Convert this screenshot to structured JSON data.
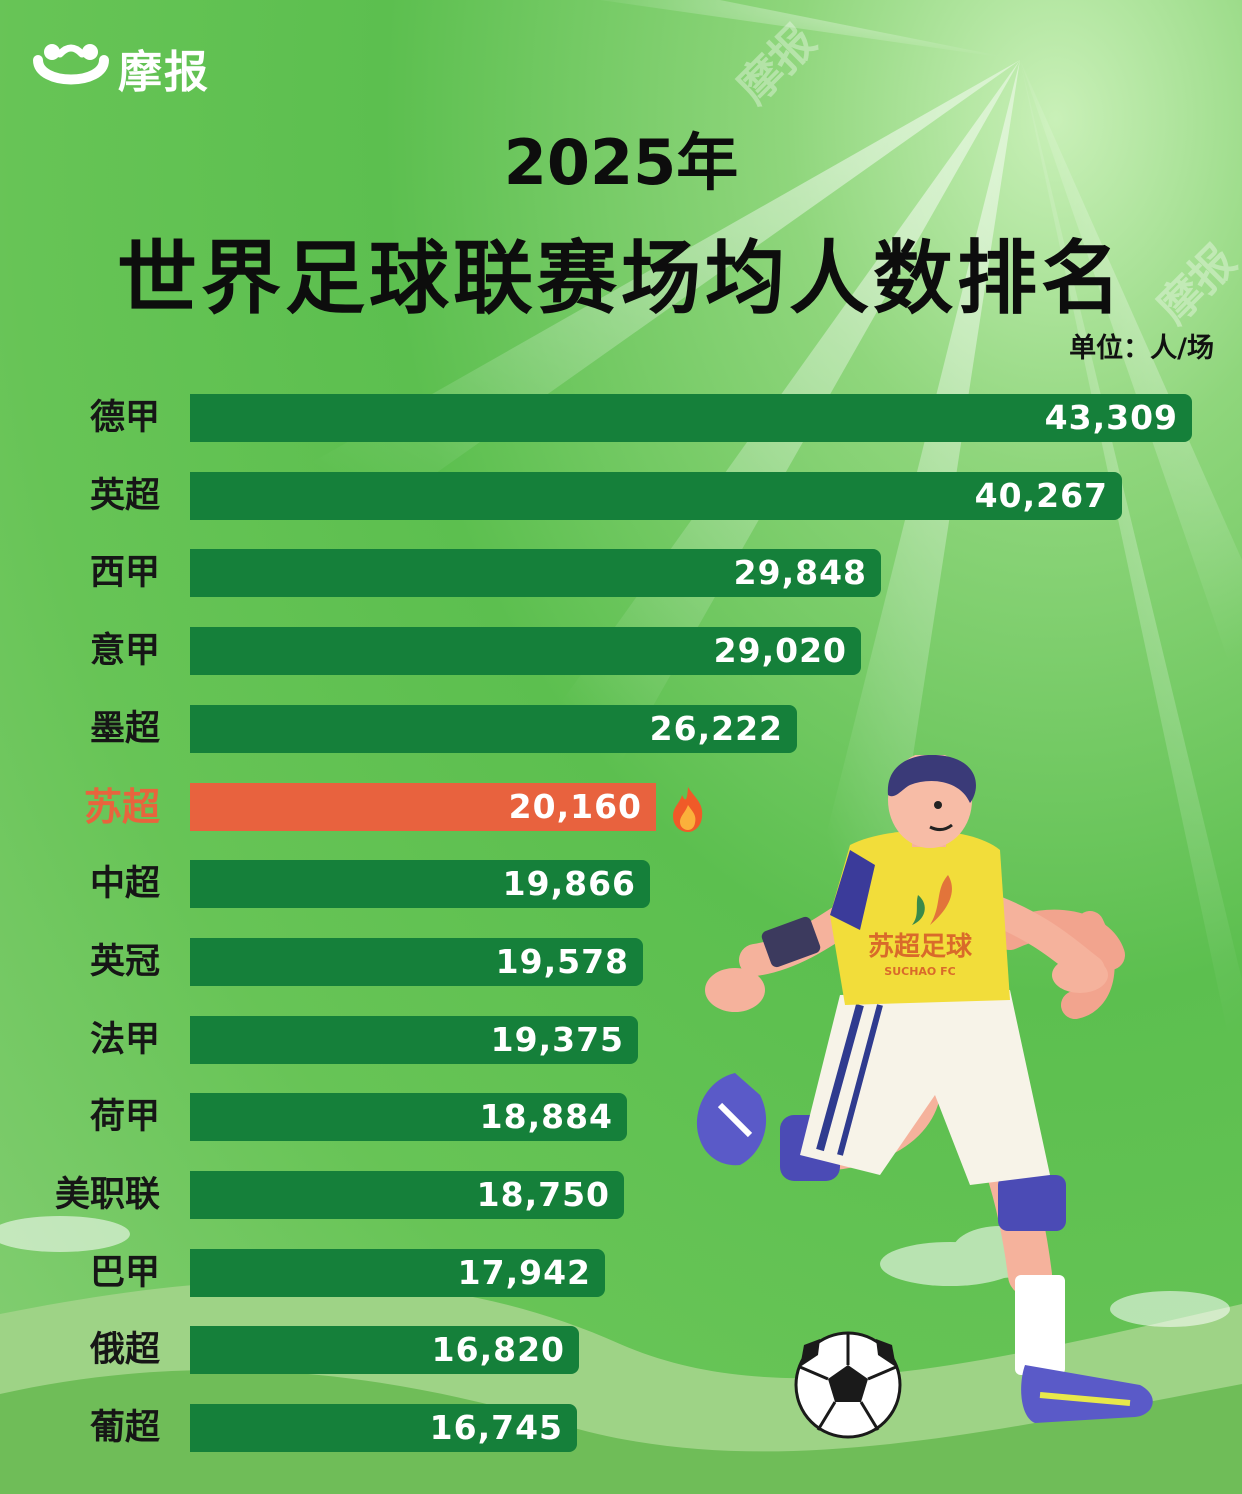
{
  "brand": {
    "name": "摩报",
    "watermark": "摩报",
    "colors": {
      "bar": "#15803a",
      "highlight": "#e8623e",
      "background": "#5cbf4f"
    }
  },
  "header": {
    "year": "2025年",
    "title": "世界足球联赛场均人数排名",
    "unit": "单位：人/场"
  },
  "chart_data": {
    "type": "bar",
    "orientation": "horizontal",
    "title": "2025年 世界足球联赛场均人数排名",
    "unit": "单位：人/场",
    "categories": [
      "德甲",
      "英超",
      "西甲",
      "意甲",
      "墨超",
      "苏超",
      "中超",
      "英冠",
      "法甲",
      "荷甲",
      "美职联",
      "巴甲",
      "俄超",
      "葡超"
    ],
    "values": [
      43309,
      40267,
      29848,
      29020,
      26222,
      20160,
      19866,
      19578,
      19375,
      18884,
      18750,
      17942,
      16820,
      16745
    ],
    "value_labels": [
      "43,309",
      "40,267",
      "29,848",
      "29,020",
      "26,222",
      "20,160",
      "19,866",
      "19,578",
      "19,375",
      "18,884",
      "18,750",
      "17,942",
      "16,820",
      "16,745"
    ],
    "highlight": "苏超",
    "highlight_icon": "fire-icon",
    "grid": false
  },
  "illustration": {
    "jersey_text": "苏超足球",
    "jersey_subtext": "SUCHAO FC",
    "icons": [
      "soccer-player-illustration",
      "soccer-ball-icon"
    ]
  }
}
